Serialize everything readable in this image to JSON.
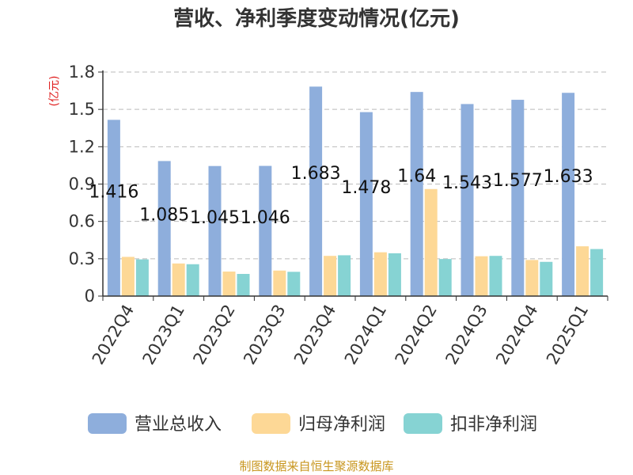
{
  "chart_data": {
    "type": "bar",
    "title": "营收、净利季度变动情况(亿元)",
    "ylabel": "(亿元)",
    "ylim": [
      0,
      1.8
    ],
    "yticks": [
      "0",
      "0.3",
      "0.6",
      "0.9",
      "1.2",
      "1.5",
      "1.8"
    ],
    "grid": true,
    "legend_position": "bottom",
    "categories": [
      "2022Q4",
      "2023Q1",
      "2023Q2",
      "2023Q3",
      "2023Q4",
      "2024Q1",
      "2024Q2",
      "2024Q3",
      "2024Q4",
      "2025Q1"
    ],
    "series": [
      {
        "name": "营业总收入",
        "color": "#8eaedc",
        "values": [
          1.416,
          1.085,
          1.045,
          1.046,
          1.683,
          1.478,
          1.64,
          1.543,
          1.577,
          1.633
        ],
        "labels": [
          "1.416",
          "1.085",
          "1.045",
          "1.046",
          "1.683",
          "1.478",
          "1.64",
          "1.543",
          "1.577",
          "1.633"
        ]
      },
      {
        "name": "归母净利润",
        "color": "#fdd896",
        "values": [
          0.315,
          0.262,
          0.197,
          0.205,
          0.323,
          0.352,
          0.86,
          0.32,
          0.29,
          0.4
        ]
      },
      {
        "name": "扣非净利润",
        "color": "#86d3d3",
        "values": [
          0.295,
          0.256,
          0.178,
          0.195,
          0.328,
          0.344,
          0.298,
          0.323,
          0.275,
          0.378
        ]
      }
    ],
    "source": "制图数据来自恒生聚源数据库"
  }
}
